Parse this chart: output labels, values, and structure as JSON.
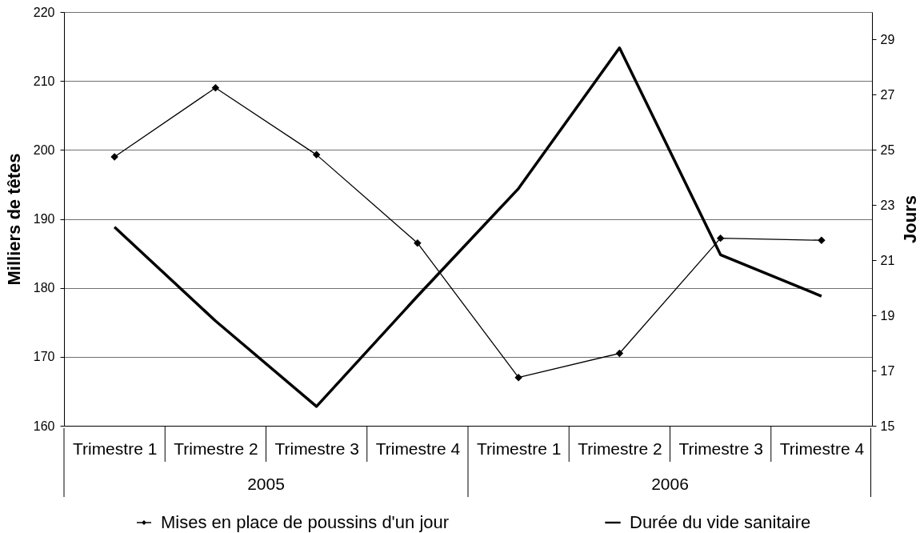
{
  "chart_data": {
    "type": "line",
    "categories": [
      "Trimestre 1",
      "Trimestre 2",
      "Trimestre 3",
      "Trimestre 4",
      "Trimestre 1",
      "Trimestre 2",
      "Trimestre 3",
      "Trimestre 4"
    ],
    "ylabel": "Milliers de têtes",
    "y2label": "Jours",
    "annotations": [
      "2005",
      "2006"
    ],
    "series": [
      {
        "name": "Mises en place de poussins d'un jour",
        "color": "#000000",
        "marker": "diamond",
        "values": [
          199.0,
          209.0,
          199.3,
          186.5,
          167.0,
          170.5,
          187.2,
          186.9
        ]
      },
      {
        "name": "Durée du vide sanitaire",
        "color": "#000000",
        "axis": "y2",
        "values": [
          22.2,
          18.8,
          15.7,
          19.7,
          23.6,
          28.7,
          21.2,
          19.7
        ]
      }
    ],
    "ylim": [
      160,
      220
    ],
    "yticks": [
      160,
      170,
      180,
      190,
      200,
      210,
      220
    ],
    "y2lim": [
      15,
      30
    ],
    "y2ticks": [
      15,
      17,
      19,
      21,
      23,
      25,
      27,
      29
    ],
    "grid": "y",
    "legend": "bottom"
  }
}
